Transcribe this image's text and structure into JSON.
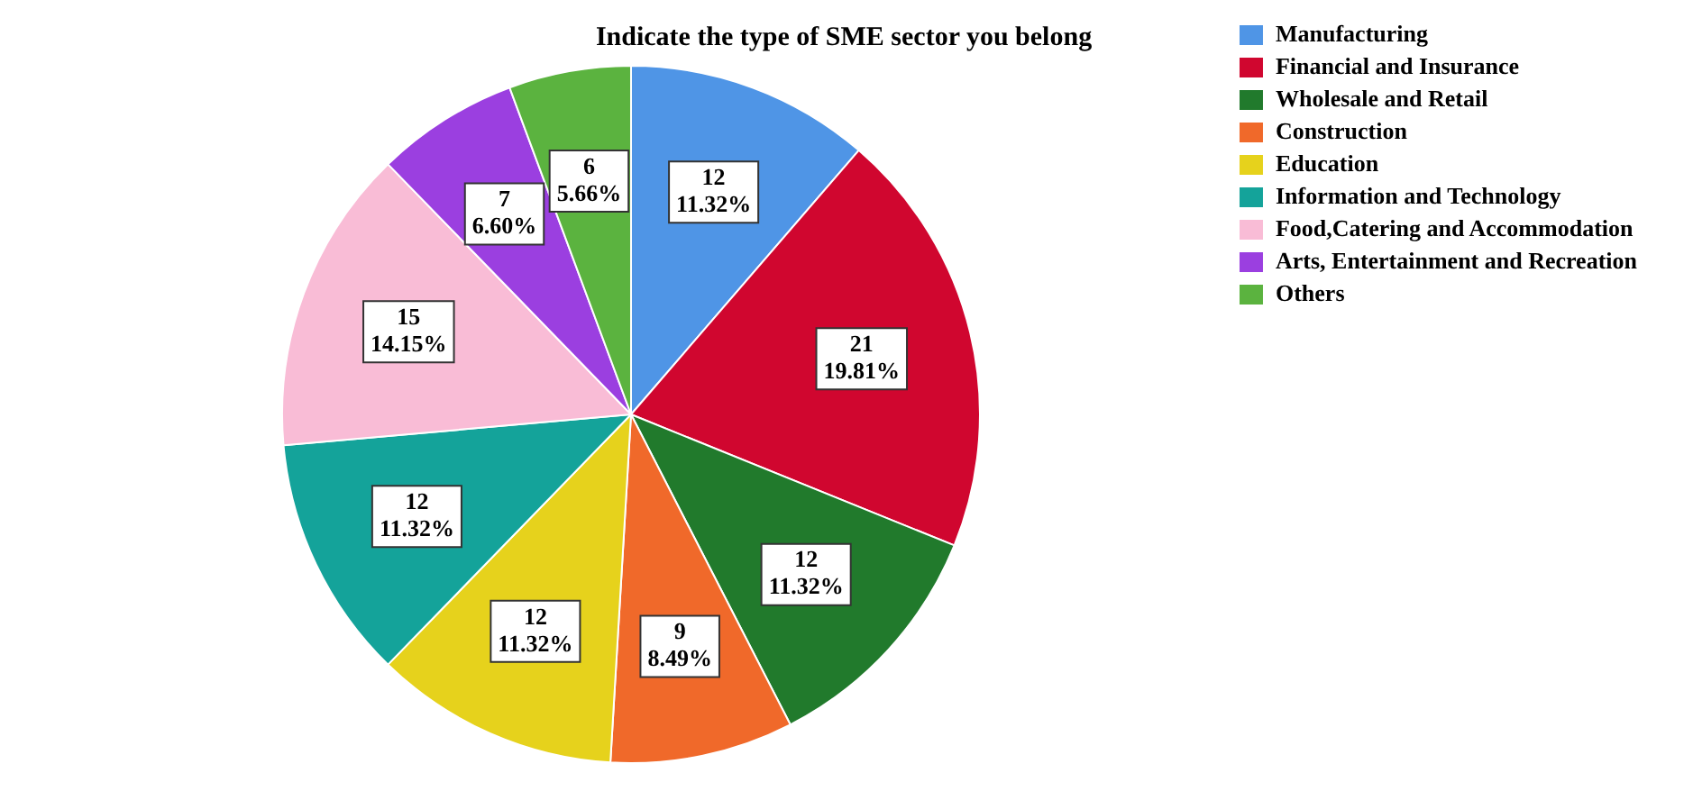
{
  "chart_data": {
    "type": "pie",
    "title": "Indicate the type of SME sector you belong",
    "categories": [
      "Manufacturing",
      "Financial and Insurance",
      "Wholesale and Retail",
      "Construction",
      "Education",
      "Information and Technology",
      "Food,Catering and Accommodation",
      "Arts, Entertainment and Recreation",
      "Others"
    ],
    "values": [
      12,
      21,
      12,
      9,
      12,
      12,
      15,
      7,
      6
    ],
    "colors": [
      "#4f95e6",
      "#d0062f",
      "#217a2c",
      "#f0692a",
      "#e6d21c",
      "#14a39a",
      "#f9bcd6",
      "#9b3fe0",
      "#5bb33f"
    ],
    "value_labels": [
      "12\n11.32%",
      "21\n19.81%",
      "12\n11.32%",
      "9\n8.49%",
      "12\n11.32%",
      "12\n11.32%",
      "15\n14.15%",
      "7\n6.60%",
      "6\n5.66%"
    ],
    "legend": "top right"
  }
}
